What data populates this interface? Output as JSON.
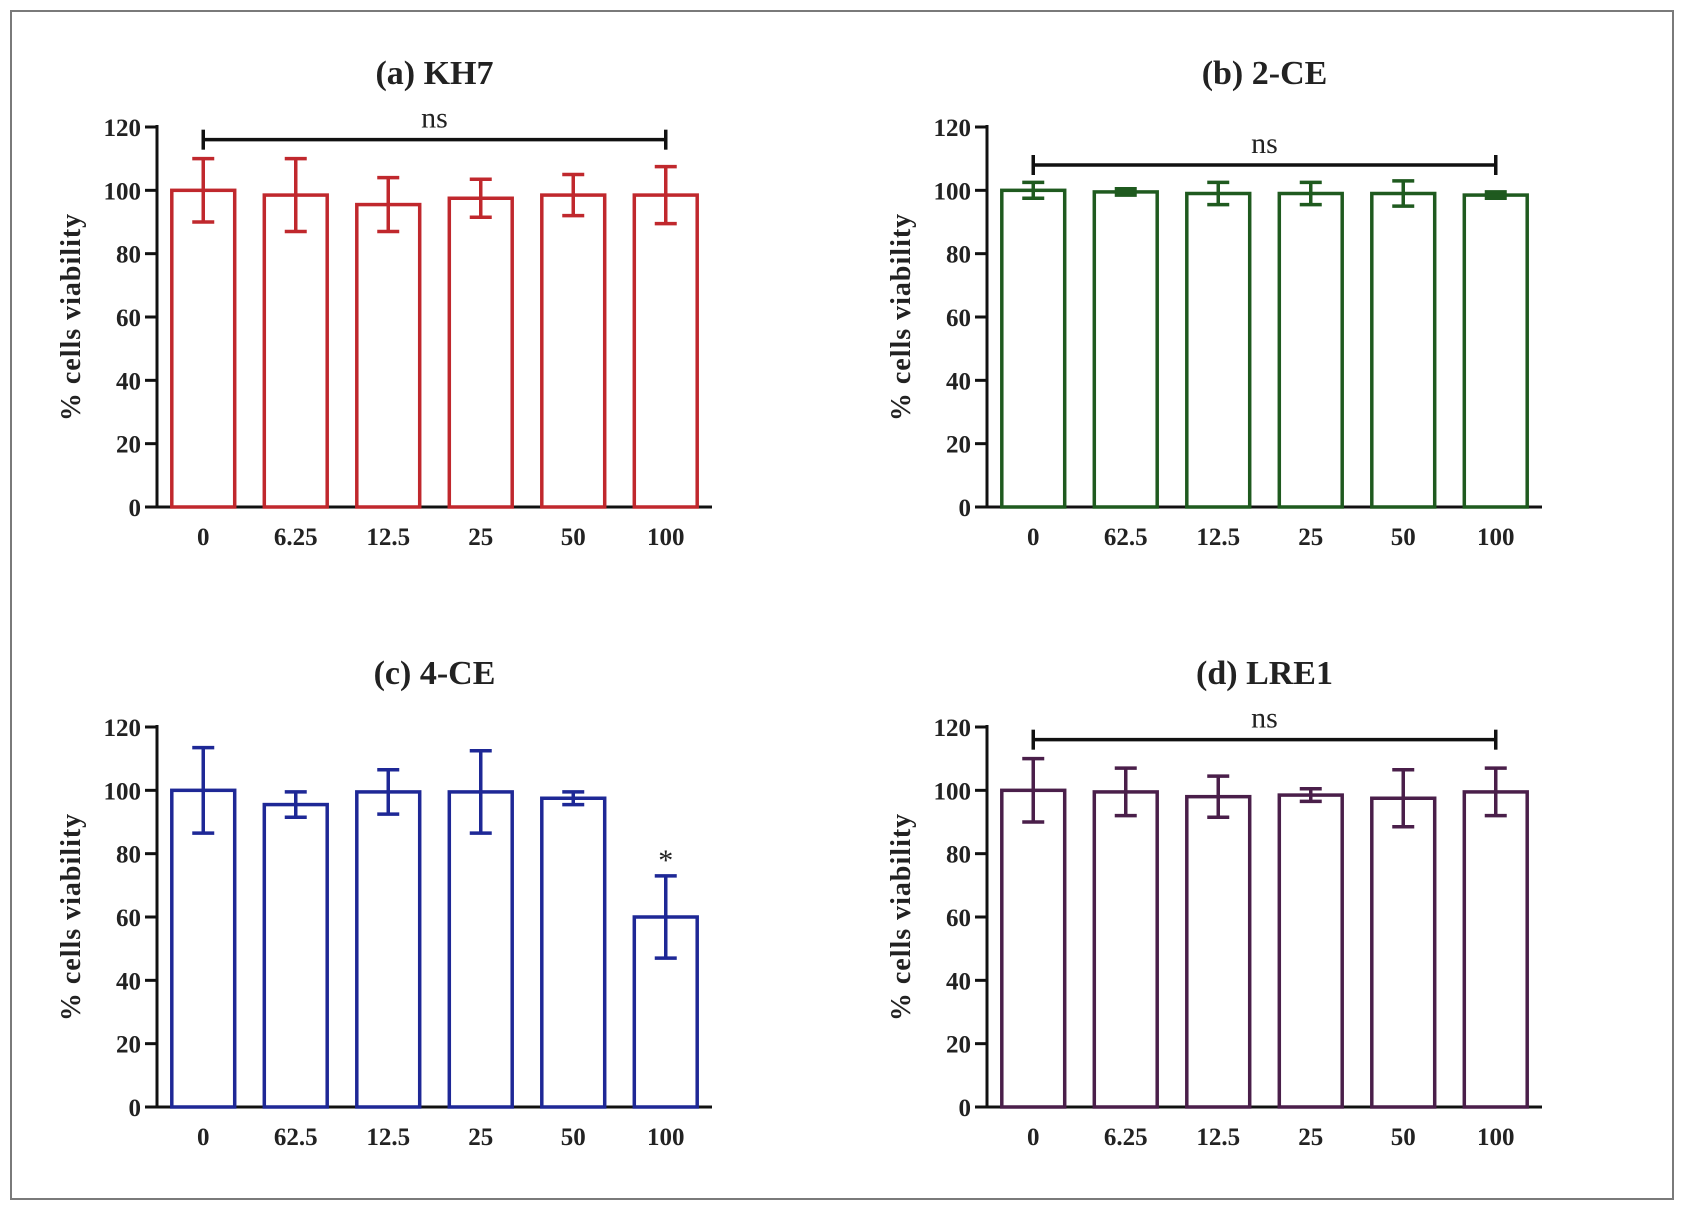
{
  "chart_data": [
    {
      "id": "a",
      "type": "bar",
      "title": "(a) KH7",
      "ylabel": "% cells viability",
      "categories": [
        "0",
        "6.25",
        "12.5",
        "25",
        "50",
        "100"
      ],
      "values": [
        100,
        98.5,
        95.5,
        97.5,
        98.5,
        98.5
      ],
      "errors": [
        10,
        11.5,
        8.5,
        6,
        6.5,
        9
      ],
      "ylim": [
        0,
        120
      ],
      "yticks": [
        "0",
        "20",
        "40",
        "60",
        "80",
        "100",
        "120"
      ],
      "color": "#c0282d",
      "annotations": [
        {
          "type": "bracket",
          "from": 0,
          "to": 5,
          "y": 116,
          "text": "ns"
        }
      ]
    },
    {
      "id": "b",
      "type": "bar",
      "title": "(b) 2-CE",
      "ylabel": "% cells viability",
      "categories": [
        "0",
        "62.5",
        "12.5",
        "25",
        "50",
        "100"
      ],
      "values": [
        100,
        99.5,
        99,
        99,
        99,
        98.5
      ],
      "errors": [
        2.5,
        1,
        3.5,
        3.5,
        4,
        1
      ],
      "ylim": [
        0,
        120
      ],
      "yticks": [
        "0",
        "20",
        "40",
        "60",
        "80",
        "100",
        "120"
      ],
      "color": "#1f5a1f",
      "annotations": [
        {
          "type": "bracket",
          "from": 0,
          "to": 5,
          "y": 108,
          "text": "ns"
        }
      ]
    },
    {
      "id": "c",
      "type": "bar",
      "title": "(c) 4-CE",
      "ylabel": "% cells viability",
      "categories": [
        "0",
        "62.5",
        "12.5",
        "25",
        "50",
        "100"
      ],
      "values": [
        100,
        95.5,
        99.5,
        99.5,
        97.5,
        60
      ],
      "errors": [
        13.5,
        4,
        7,
        13,
        2,
        13
      ],
      "ylim": [
        0,
        120
      ],
      "yticks": [
        "0",
        "20",
        "40",
        "60",
        "80",
        "100",
        "120"
      ],
      "color": "#1e2896",
      "annotations": [
        {
          "type": "star",
          "bar": 5,
          "text": "*"
        }
      ]
    },
    {
      "id": "d",
      "type": "bar",
      "title": "(d) LRE1",
      "ylabel": "% cells viability",
      "categories": [
        "0",
        "6.25",
        "12.5",
        "25",
        "50",
        "100"
      ],
      "values": [
        100,
        99.5,
        98,
        98.5,
        97.5,
        99.5
      ],
      "errors": [
        10,
        7.5,
        6.5,
        2,
        9,
        7.5
      ],
      "ylim": [
        0,
        120
      ],
      "yticks": [
        "0",
        "20",
        "40",
        "60",
        "80",
        "100",
        "120"
      ],
      "color": "#4a1f4a",
      "annotations": [
        {
          "type": "bracket",
          "from": 0,
          "to": 5,
          "y": 116,
          "text": "ns"
        }
      ]
    }
  ]
}
